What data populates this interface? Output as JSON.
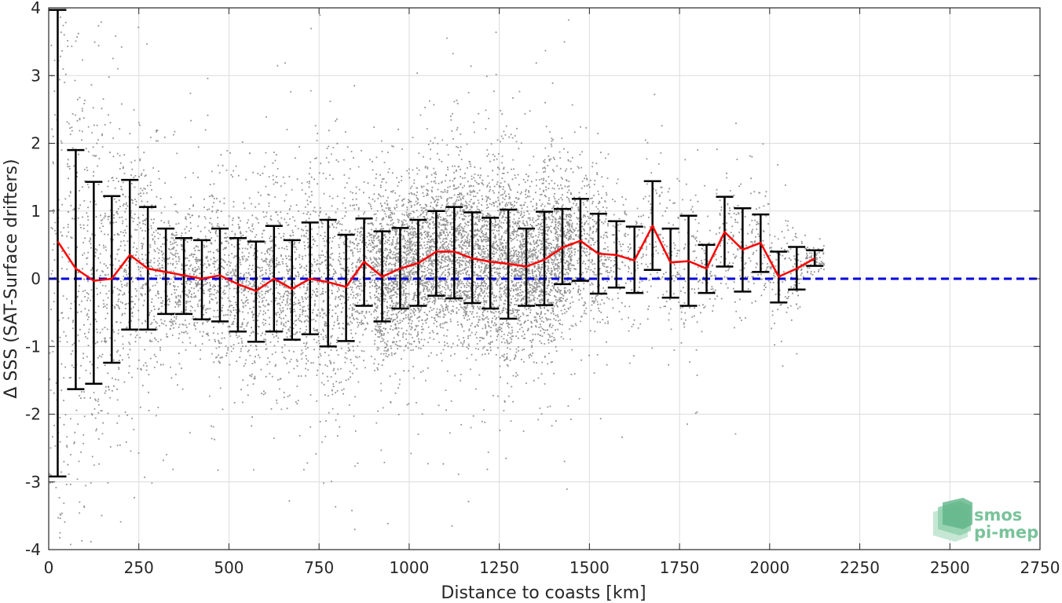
{
  "chart_data": {
    "type": "scatter",
    "xlabel": "Distance to coasts [km]",
    "ylabel": "Δ SSS (SAT-Surface drifters)",
    "xlim": [
      0,
      2750
    ],
    "ylim": [
      -4,
      4
    ],
    "xticks": [
      0,
      250,
      500,
      750,
      1000,
      1250,
      1500,
      1750,
      2000,
      2250,
      2500,
      2750
    ],
    "yticks": [
      -4,
      -3,
      -2,
      -1,
      0,
      1,
      2,
      3,
      4
    ],
    "grid": true,
    "reference_line": {
      "y": 0,
      "color": "#0000dd",
      "style": "dashed"
    },
    "scatter_color": "#808080",
    "mean_color": "#ff0000",
    "errorbar_color": "#000000",
    "bins": [
      {
        "x": 25,
        "mean": 0.55,
        "low": -2.92,
        "high": 3.97
      },
      {
        "x": 75,
        "mean": 0.15,
        "low": -1.63,
        "high": 1.9
      },
      {
        "x": 125,
        "mean": -0.03,
        "low": -1.55,
        "high": 1.43
      },
      {
        "x": 175,
        "mean": 0.0,
        "low": -1.24,
        "high": 1.22
      },
      {
        "x": 225,
        "mean": 0.35,
        "low": -0.75,
        "high": 1.46
      },
      {
        "x": 275,
        "mean": 0.15,
        "low": -0.75,
        "high": 1.06
      },
      {
        "x": 325,
        "mean": 0.1,
        "low": -0.52,
        "high": 0.74
      },
      {
        "x": 375,
        "mean": 0.05,
        "low": -0.52,
        "high": 0.6
      },
      {
        "x": 425,
        "mean": 0.0,
        "low": -0.6,
        "high": 0.57
      },
      {
        "x": 475,
        "mean": 0.05,
        "low": -0.63,
        "high": 0.74
      },
      {
        "x": 525,
        "mean": -0.08,
        "low": -0.78,
        "high": 0.6
      },
      {
        "x": 575,
        "mean": -0.18,
        "low": -0.93,
        "high": 0.55
      },
      {
        "x": 625,
        "mean": 0.0,
        "low": -0.78,
        "high": 0.78
      },
      {
        "x": 675,
        "mean": -0.15,
        "low": -0.9,
        "high": 0.57
      },
      {
        "x": 725,
        "mean": 0.0,
        "low": -0.82,
        "high": 0.83
      },
      {
        "x": 775,
        "mean": -0.05,
        "low": -1.0,
        "high": 0.87
      },
      {
        "x": 825,
        "mean": -0.12,
        "low": -0.92,
        "high": 0.65
      },
      {
        "x": 875,
        "mean": 0.25,
        "low": -0.4,
        "high": 0.89
      },
      {
        "x": 925,
        "mean": 0.03,
        "low": -0.63,
        "high": 0.7
      },
      {
        "x": 975,
        "mean": 0.15,
        "low": -0.44,
        "high": 0.75
      },
      {
        "x": 1025,
        "mean": 0.23,
        "low": -0.4,
        "high": 0.87
      },
      {
        "x": 1075,
        "mean": 0.4,
        "low": -0.25,
        "high": 1.0
      },
      {
        "x": 1125,
        "mean": 0.4,
        "low": -0.29,
        "high": 1.06
      },
      {
        "x": 1175,
        "mean": 0.3,
        "low": -0.36,
        "high": 0.98
      },
      {
        "x": 1225,
        "mean": 0.25,
        "low": -0.44,
        "high": 0.9
      },
      {
        "x": 1275,
        "mean": 0.22,
        "low": -0.59,
        "high": 1.02
      },
      {
        "x": 1325,
        "mean": 0.18,
        "low": -0.4,
        "high": 0.74
      },
      {
        "x": 1375,
        "mean": 0.28,
        "low": -0.39,
        "high": 0.99
      },
      {
        "x": 1425,
        "mean": 0.46,
        "low": -0.08,
        "high": 1.03
      },
      {
        "x": 1475,
        "mean": 0.56,
        "low": -0.03,
        "high": 1.18
      },
      {
        "x": 1525,
        "mean": 0.37,
        "low": -0.22,
        "high": 0.96
      },
      {
        "x": 1575,
        "mean": 0.35,
        "low": -0.13,
        "high": 0.85
      },
      {
        "x": 1625,
        "mean": 0.27,
        "low": -0.21,
        "high": 0.77
      },
      {
        "x": 1675,
        "mean": 0.78,
        "low": 0.13,
        "high": 1.44
      },
      {
        "x": 1725,
        "mean": 0.24,
        "low": -0.28,
        "high": 0.74
      },
      {
        "x": 1775,
        "mean": 0.26,
        "low": -0.4,
        "high": 0.93
      },
      {
        "x": 1825,
        "mean": 0.15,
        "low": -0.21,
        "high": 0.5
      },
      {
        "x": 1875,
        "mean": 0.69,
        "low": 0.18,
        "high": 1.21
      },
      {
        "x": 1925,
        "mean": 0.43,
        "low": -0.19,
        "high": 1.04
      },
      {
        "x": 1975,
        "mean": 0.53,
        "low": 0.1,
        "high": 0.95
      },
      {
        "x": 2025,
        "mean": 0.03,
        "low": -0.35,
        "high": 0.4
      },
      {
        "x": 2075,
        "mean": 0.15,
        "low": -0.16,
        "high": 0.47
      },
      {
        "x": 2125,
        "mean": 0.3,
        "low": 0.19,
        "high": 0.42
      }
    ]
  },
  "logo": {
    "line1": "smos",
    "line2": "pi-mep"
  }
}
